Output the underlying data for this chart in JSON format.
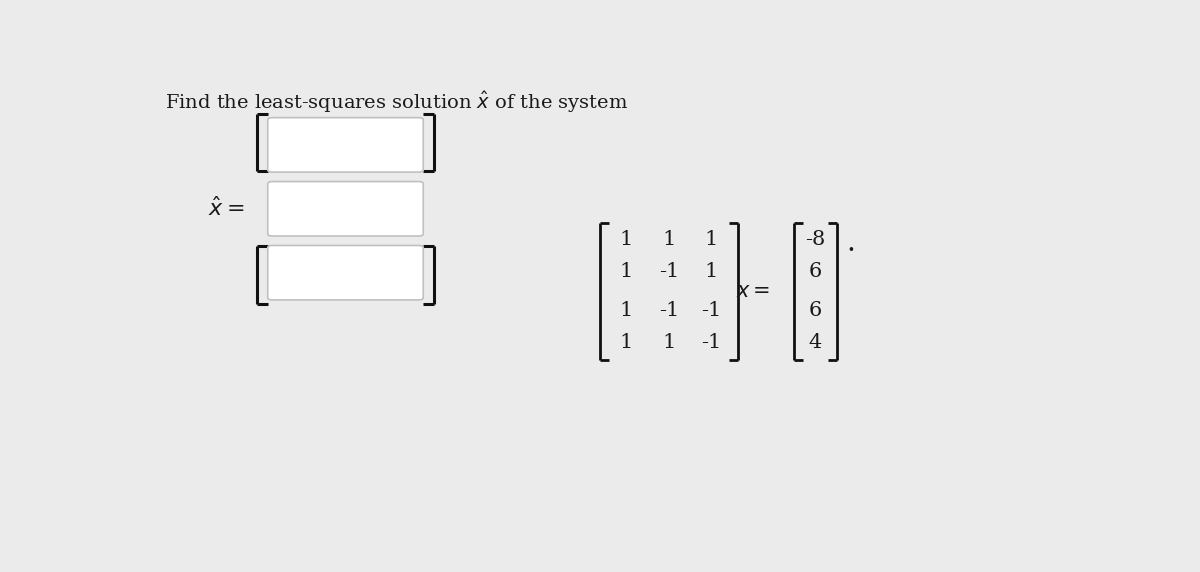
{
  "title": "Find the least-squares solution $\\hat{x}$ of the system",
  "title_fontsize": 14,
  "background_color": "#ebebeb",
  "matrix_A": [
    [
      1,
      1,
      1
    ],
    [
      1,
      -1,
      1
    ],
    [
      1,
      -1,
      -1
    ],
    [
      1,
      1,
      -1
    ]
  ],
  "vector_b": [
    -8,
    6,
    6,
    4
  ],
  "text_color": "#1a1a1a",
  "box_color": "#ffffff",
  "box_edge_color": "#c0c0c0",
  "bracket_color": "#111111",
  "font_size_matrix": 15,
  "font_size_label": 15
}
